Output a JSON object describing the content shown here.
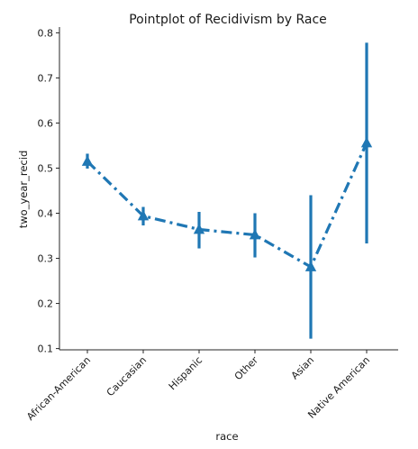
{
  "chart_data": {
    "type": "pointplot",
    "title": "Pointplot of Recidivism by Race",
    "xlabel": "race",
    "ylabel": "two_year_recid",
    "categories": [
      "African-American",
      "Caucasian",
      "Hispanic",
      "Other",
      "Asian",
      "Native American"
    ],
    "series": [
      {
        "values": [
          0.515,
          0.394,
          0.364,
          0.352,
          0.281,
          0.556
        ],
        "ci_low": [
          0.499,
          0.373,
          0.322,
          0.302,
          0.122,
          0.333
        ],
        "ci_high": [
          0.532,
          0.414,
          0.403,
          0.4,
          0.44,
          0.778
        ],
        "color": "#1f77b4",
        "marker": "triangle-up",
        "linestyle": "dash-dot"
      }
    ],
    "ylim": [
      0.09,
      0.81
    ],
    "yticks": [
      0.1,
      0.2,
      0.3,
      0.4,
      0.5,
      0.6,
      0.7,
      0.8
    ],
    "ytick_labels": [
      "0.1",
      "0.2",
      "0.3",
      "0.4",
      "0.5",
      "0.6",
      "0.7",
      "0.8"
    ],
    "grid": false
  }
}
